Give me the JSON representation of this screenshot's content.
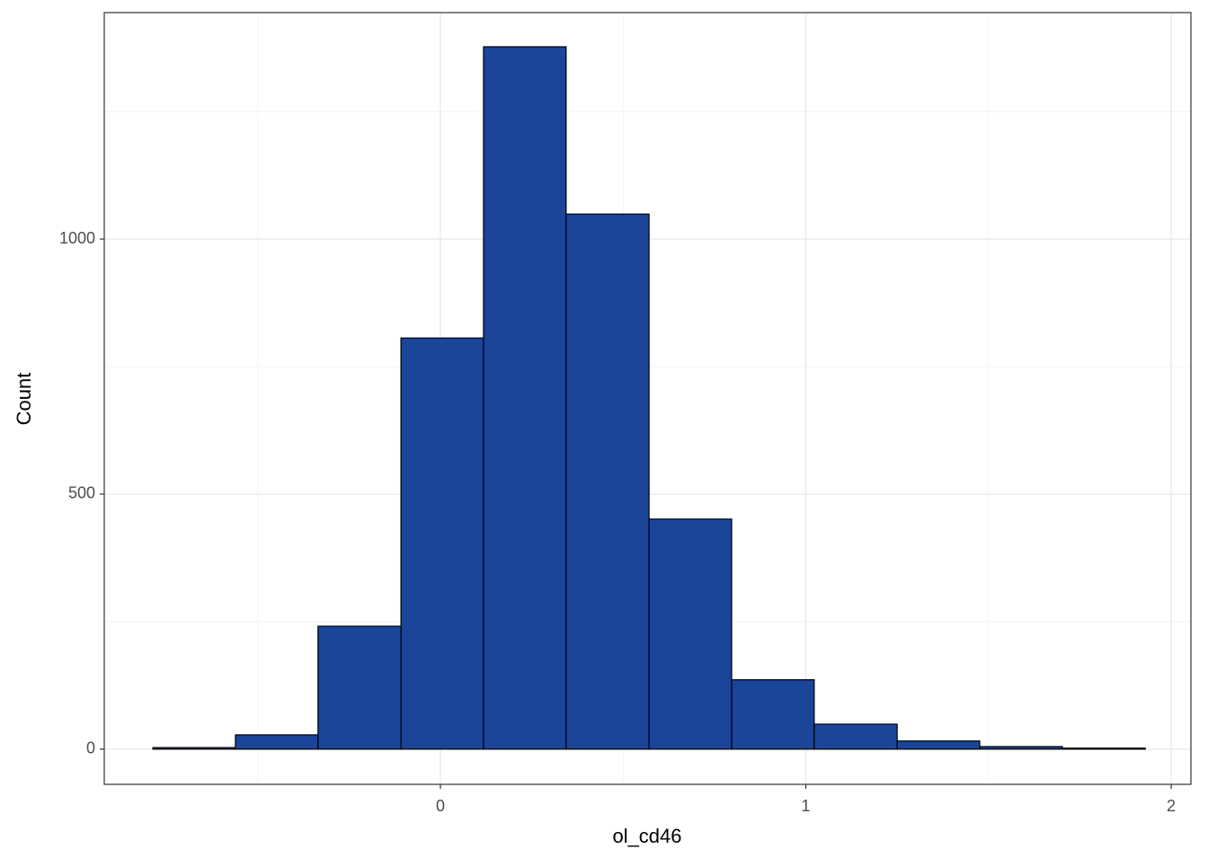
{
  "chart_data": {
    "type": "histogram",
    "x_label": "ol_cd46",
    "y_label": "Count",
    "bins": [
      -0.787,
      -0.561,
      -0.335,
      -0.108,
      0.118,
      0.344,
      0.571,
      0.797,
      1.023,
      1.25,
      1.476,
      1.702,
      1.929
    ],
    "values": [
      3,
      28,
      241,
      806,
      1377,
      1049,
      451,
      136,
      49,
      16,
      5,
      2
    ],
    "color": "#1a4599",
    "edge_color": "#000000",
    "xlim": [
      -0.92,
      2.054
    ],
    "ylim": [
      -69,
      1444
    ],
    "xticks": [
      0,
      1,
      2
    ],
    "yticks": [
      0,
      500,
      1000
    ],
    "grid": true
  }
}
